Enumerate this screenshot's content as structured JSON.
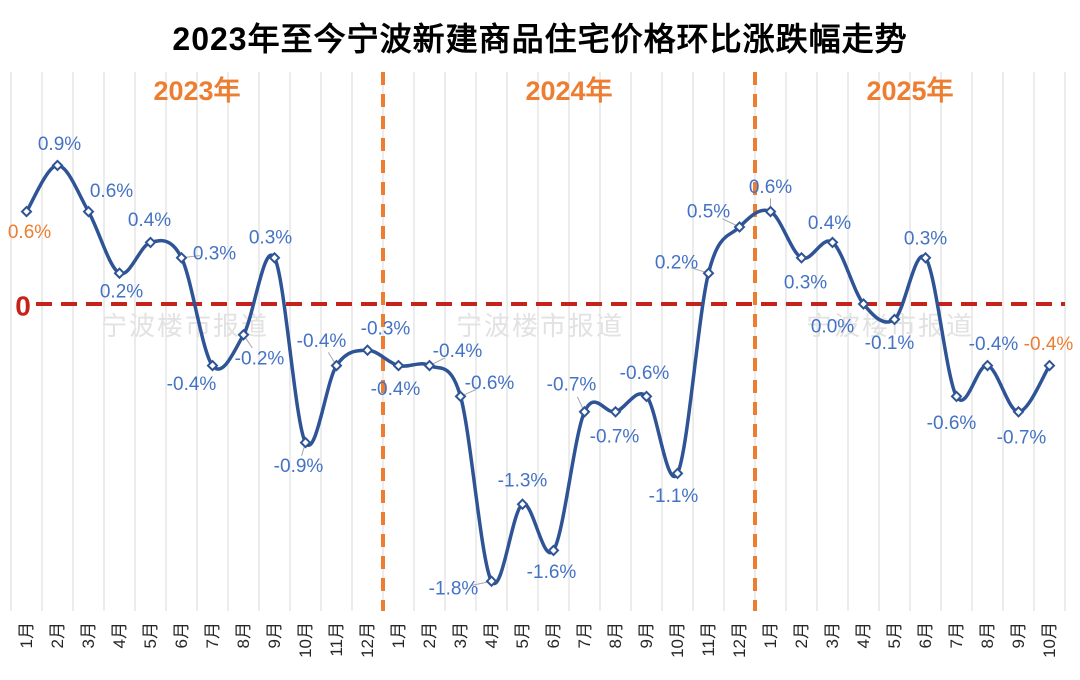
{
  "title": "2023年至今宁波新建商品住宅价格环比涨跌幅走势",
  "watermark_text": "宁波楼市报道",
  "zero_axis_label": "0",
  "colors": {
    "line": "#2F5496",
    "data_label_blue": "#4472C4",
    "accent_orange": "#ED7D31",
    "zero_line_red": "#C5221C",
    "gridline": "#D9D9D9",
    "watermark": "#E2E2E2",
    "leader": "#A6A6A6",
    "month_label": "#262626"
  },
  "chart_data": {
    "type": "line",
    "title": "2023年至今宁波新建商品住宅价格环比涨跌幅走势",
    "xlabel": "",
    "ylabel": "",
    "ylim": [
      -2.0,
      1.5
    ],
    "grid": "vertical-only",
    "zero_line": true,
    "legend": "none",
    "year_sections": [
      {
        "label": "2023年",
        "months": 12
      },
      {
        "label": "2024年",
        "months": 12
      },
      {
        "label": "2025年",
        "months": 10
      }
    ],
    "series": [
      {
        "name": "新建商品住宅价格环比涨跌幅",
        "points": [
          {
            "m": "1月",
            "v": 0.6,
            "t": "0.6%",
            "c": "orange",
            "dx": 3,
            "dy": 21
          },
          {
            "m": "2月",
            "v": 0.9,
            "t": "0.9%",
            "dx": 2,
            "dy": -21
          },
          {
            "m": "3月",
            "v": 0.6,
            "t": "0.6%",
            "dx": 23,
            "dy": -20
          },
          {
            "m": "4月",
            "v": 0.2,
            "t": "0.2%",
            "dx": 2,
            "dy": 19
          },
          {
            "m": "5月",
            "v": 0.4,
            "t": "0.4%",
            "dx": -1,
            "dy": -22
          },
          {
            "m": "6月",
            "v": 0.3,
            "t": "0.3%",
            "dx": 33,
            "dy": -4,
            "leader": true
          },
          {
            "m": "7月",
            "v": -0.4,
            "t": "-0.4%",
            "dx": -21,
            "dy": 19
          },
          {
            "m": "8月",
            "v": -0.2,
            "t": "-0.2%",
            "dx": 16,
            "dy": 24,
            "leader": true
          },
          {
            "m": "9月",
            "v": 0.3,
            "t": "0.3%",
            "dx": -4,
            "dy": -20
          },
          {
            "m": "10月",
            "v": -0.9,
            "t": "-0.9%",
            "dx": -7,
            "dy": 24,
            "leader": true
          },
          {
            "m": "11月",
            "v": -0.4,
            "t": "-0.4%",
            "dx": -15,
            "dy": -24,
            "leader": true
          },
          {
            "m": "12月",
            "v": -0.3,
            "t": "-0.3%",
            "dx": 18,
            "dy": -21
          },
          {
            "m": "1月",
            "v": -0.4,
            "t": "-0.4%",
            "dx": -3,
            "dy": 24
          },
          {
            "m": "2月",
            "v": -0.4,
            "t": "-0.4%",
            "dx": 28,
            "dy": -14,
            "leader": true
          },
          {
            "m": "3月",
            "v": -0.6,
            "t": "-0.6%",
            "dx": 29,
            "dy": -13,
            "leader": true
          },
          {
            "m": "4月",
            "v": -1.8,
            "t": "-1.8%",
            "dx": -38,
            "dy": 8,
            "leader": true
          },
          {
            "m": "5月",
            "v": -1.3,
            "t": "-1.3%",
            "dx": 0,
            "dy": -23
          },
          {
            "m": "6月",
            "v": -1.6,
            "t": "-1.6%",
            "dx": -2,
            "dy": 22
          },
          {
            "m": "7月",
            "v": -0.7,
            "t": "-0.7%",
            "dx": -13,
            "dy": -27,
            "leader": true
          },
          {
            "m": "8月",
            "v": -0.7,
            "t": "-0.7%",
            "dx": -1,
            "dy": 25
          },
          {
            "m": "9月",
            "v": -0.6,
            "t": "-0.6%",
            "dx": -2,
            "dy": -23
          },
          {
            "m": "10月",
            "v": -1.1,
            "t": "-1.1%",
            "dx": -4,
            "dy": 23
          },
          {
            "m": "11月",
            "v": 0.2,
            "t": "0.2%",
            "dx": -32,
            "dy": -10,
            "leader": true
          },
          {
            "m": "12月",
            "v": 0.5,
            "t": "0.5%",
            "dx": -31,
            "dy": -15,
            "leader": true
          },
          {
            "m": "1月",
            "v": 0.6,
            "t": "0.6%",
            "dx": 0,
            "dy": -24,
            "leader": true
          },
          {
            "m": "2月",
            "v": 0.3,
            "t": "0.3%",
            "dx": 4,
            "dy": 25
          },
          {
            "m": "3月",
            "v": 0.4,
            "t": "0.4%",
            "dx": -3,
            "dy": -19
          },
          {
            "m": "4月",
            "v": 0.0,
            "t": "0.0%",
            "dx": -31,
            "dy": 23
          },
          {
            "m": "5月",
            "v": -0.1,
            "t": "-0.1%",
            "dx": -5,
            "dy": 24
          },
          {
            "m": "6月",
            "v": 0.3,
            "t": "0.3%",
            "dx": 0,
            "dy": -19
          },
          {
            "m": "7月",
            "v": -0.6,
            "t": "-0.6%",
            "dx": -5,
            "dy": 27
          },
          {
            "m": "8月",
            "v": -0.4,
            "t": "-0.4%",
            "dx": 6,
            "dy": -21
          },
          {
            "m": "9月",
            "v": -0.7,
            "t": "-0.7%",
            "dx": 3,
            "dy": 26
          },
          {
            "m": "10月",
            "v": -0.4,
            "t": "-0.4%",
            "c": "orange",
            "dx": -1,
            "dy": -21
          }
        ]
      }
    ]
  }
}
